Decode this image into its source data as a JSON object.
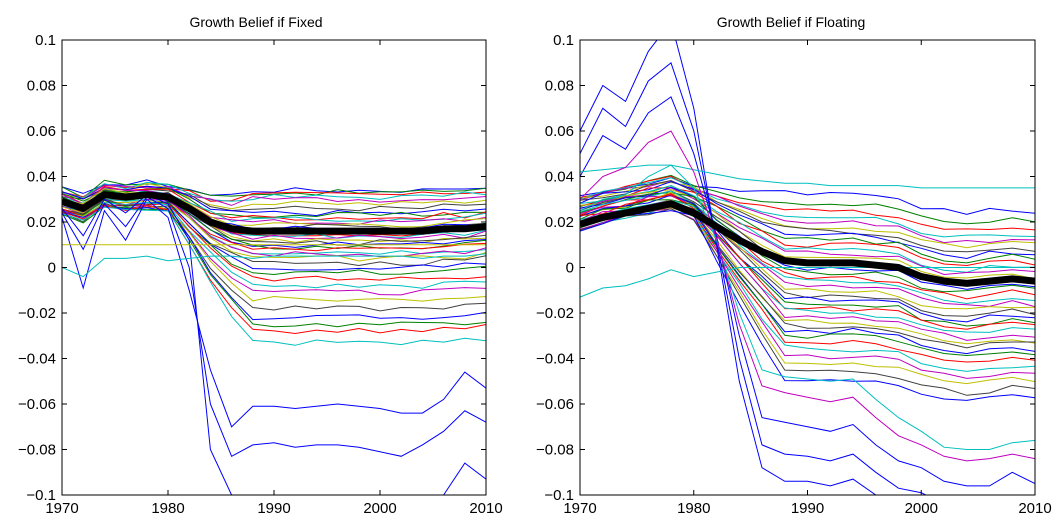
{
  "figure": {
    "background": "#ffffff",
    "line_colors": [
      "#0000ff",
      "#008000",
      "#ff0000",
      "#00bfbf",
      "#bf00bf",
      "#bfbf00",
      "#404040"
    ],
    "mean_color": "#000000"
  },
  "chart_data": [
    {
      "type": "line",
      "title": "Growth Belief if Fixed",
      "xlabel": "",
      "ylabel": "",
      "xlim": [
        1970,
        2010
      ],
      "ylim": [
        -0.1,
        0.1
      ],
      "xticks": [
        1970,
        1980,
        1990,
        2000,
        2010
      ],
      "yticks": [
        -0.1,
        -0.08,
        -0.06,
        -0.04,
        -0.02,
        0,
        0.02,
        0.04,
        0.06,
        0.08,
        0.1
      ],
      "ytick_labels": [
        "−0.1",
        "−0.08",
        "−0.06",
        "−0.04",
        "−0.02",
        "0",
        "0.02",
        "0.04",
        "0.06",
        "0.08",
        "0.1"
      ],
      "grid": false,
      "legend": "none",
      "x": [
        1970,
        1972,
        1974,
        1976,
        1978,
        1980,
        1982,
        1984,
        1986,
        1988,
        1990,
        1992,
        1994,
        1996,
        1998,
        2000,
        2002,
        2004,
        2006,
        2008,
        2010
      ],
      "mean_series": [
        0.029,
        0.026,
        0.032,
        0.031,
        0.032,
        0.031,
        0.026,
        0.02,
        0.017,
        0.016,
        0.016,
        0.016,
        0.016,
        0.016,
        0.016,
        0.016,
        0.016,
        0.016,
        0.017,
        0.017,
        0.018
      ],
      "spread_series": {
        "pre1980": [
          0.039,
          0.037,
          0.036,
          0.035,
          0.034,
          0.033,
          0.032,
          0.031,
          0.03,
          0.029,
          0.028,
          0.027,
          0.026,
          0.025,
          0.024,
          0.023,
          0.022,
          0.021,
          0.02,
          0.019,
          0.018
        ],
        "post1990": [
          0.036,
          0.035,
          0.034,
          0.033,
          0.032,
          0.03,
          0.028,
          0.026,
          0.025,
          0.024,
          0.023,
          0.022,
          0.021,
          0.02,
          0.019,
          0.018,
          0.017,
          0.016,
          0.015,
          0.014,
          0.013,
          0.012,
          0.011,
          0.01,
          0.009,
          0.008,
          0.006,
          0.004,
          0.002,
          0.0,
          -0.003,
          -0.006,
          -0.009,
          -0.012,
          -0.016,
          -0.02,
          -0.023,
          -0.026,
          -0.031
        ]
      },
      "outlier_series": [
        {
          "color": "#0000ff",
          "values": [
            0.022,
            -0.009,
            0.025,
            0.012,
            0.03,
            0.022,
            -0.01,
            -0.045,
            -0.07,
            -0.061,
            -0.061,
            -0.062,
            -0.061,
            -0.06,
            -0.061,
            -0.062,
            -0.064,
            -0.064,
            -0.058,
            -0.046,
            -0.053
          ]
        },
        {
          "color": "#0000ff",
          "values": [
            0.024,
            0.008,
            0.028,
            0.018,
            0.031,
            0.026,
            0.0,
            -0.06,
            -0.083,
            -0.078,
            -0.077,
            -0.079,
            -0.078,
            -0.078,
            -0.079,
            -0.081,
            -0.083,
            -0.078,
            -0.072,
            -0.063,
            -0.068
          ]
        },
        {
          "color": "#0000ff",
          "values": [
            0.026,
            0.014,
            0.03,
            0.024,
            0.032,
            0.028,
            0.012,
            -0.08,
            -0.1,
            -0.11,
            -0.112,
            -0.112,
            -0.112,
            -0.112,
            -0.112,
            -0.112,
            -0.112,
            -0.112,
            -0.1,
            -0.086,
            -0.093
          ]
        },
        {
          "color": "#00bfbf",
          "values": [
            0.0,
            -0.004,
            0.004,
            0.004,
            0.005,
            0.003,
            0.004,
            0.005,
            0.005,
            0.004,
            0.005,
            0.005,
            0.005,
            0.005,
            0.005,
            0.005,
            0.005,
            0.004,
            0.005,
            0.005,
            0.006
          ]
        },
        {
          "color": "#bfbf00",
          "values": [
            0.01,
            0.01,
            0.01,
            0.01,
            0.01,
            0.01,
            0.01,
            0.01,
            0.01,
            0.01,
            0.01,
            0.01,
            0.01,
            0.01,
            0.01,
            0.01,
            0.01,
            0.01,
            0.01,
            0.01,
            0.01
          ]
        }
      ]
    },
    {
      "type": "line",
      "title": "Growth Belief if Floating",
      "xlabel": "",
      "ylabel": "",
      "xlim": [
        1970,
        2010
      ],
      "ylim": [
        -0.1,
        0.1
      ],
      "xticks": [
        1970,
        1980,
        1990,
        2000,
        2010
      ],
      "yticks": [
        -0.1,
        -0.08,
        -0.06,
        -0.04,
        -0.02,
        0,
        0.02,
        0.04,
        0.06,
        0.08,
        0.1
      ],
      "ytick_labels": [
        "−0.1",
        "−0.08",
        "−0.06",
        "−0.04",
        "−0.02",
        "0",
        "0.02",
        "0.04",
        "0.06",
        "0.08",
        "0.1"
      ],
      "grid": false,
      "legend": "none",
      "x": [
        1970,
        1972,
        1974,
        1976,
        1978,
        1980,
        1982,
        1984,
        1986,
        1988,
        1990,
        1992,
        1994,
        1996,
        1998,
        2000,
        2002,
        2004,
        2006,
        2008,
        2010
      ],
      "mean_series": [
        0.019,
        0.022,
        0.024,
        0.026,
        0.028,
        0.024,
        0.018,
        0.012,
        0.007,
        0.003,
        0.002,
        0.002,
        0.002,
        0.001,
        0.0,
        -0.004,
        -0.006,
        -0.007,
        -0.006,
        -0.005,
        -0.006
      ],
      "spread_series": {
        "pre1980": [
          0.04,
          0.038,
          0.036,
          0.034,
          0.032,
          0.03,
          0.028,
          0.026,
          0.024,
          0.022,
          0.02,
          0.018,
          0.016,
          0.015
        ],
        "post1990": [
          0.025,
          0.02,
          0.017,
          0.014,
          0.012,
          0.01,
          0.008,
          0.006,
          0.004,
          0.002,
          0.0,
          -0.002,
          -0.004,
          -0.006,
          -0.008,
          -0.01,
          -0.012,
          -0.014,
          -0.016,
          -0.018,
          -0.02,
          -0.022,
          -0.024,
          -0.026,
          -0.028,
          -0.03,
          -0.032,
          -0.034,
          -0.036,
          -0.038,
          -0.041,
          -0.044,
          -0.047,
          -0.05,
          -0.054,
          -0.058
        ]
      },
      "outlier_series": [
        {
          "color": "#0000ff",
          "values": [
            0.06,
            0.08,
            0.073,
            0.095,
            0.108,
            0.07,
            0.01,
            -0.05,
            -0.088,
            -0.094,
            -0.094,
            -0.096,
            -0.093,
            -0.1,
            -0.106,
            -0.106,
            -0.11,
            -0.11,
            -0.11,
            -0.11,
            -0.11
          ]
        },
        {
          "color": "#0000ff",
          "values": [
            0.05,
            0.07,
            0.062,
            0.082,
            0.09,
            0.06,
            0.012,
            -0.04,
            -0.078,
            -0.082,
            -0.083,
            -0.085,
            -0.082,
            -0.09,
            -0.097,
            -0.099,
            -0.104,
            -0.105,
            -0.105,
            -0.105,
            -0.105
          ]
        },
        {
          "color": "#0000ff",
          "values": [
            0.04,
            0.058,
            0.052,
            0.068,
            0.075,
            0.05,
            0.014,
            -0.03,
            -0.066,
            -0.068,
            -0.07,
            -0.072,
            -0.069,
            -0.078,
            -0.085,
            -0.088,
            -0.094,
            -0.096,
            -0.096,
            -0.09,
            -0.095
          ]
        },
        {
          "color": "#00bfbf",
          "values": [
            -0.013,
            -0.009,
            -0.008,
            -0.005,
            -0.001,
            -0.004,
            -0.002,
            0.0,
            0.0,
            0.0,
            0.0,
            0.0,
            0.0,
            0.0,
            0.0,
            0.0,
            0.0,
            0.0,
            0.0,
            0.0,
            0.0
          ]
        },
        {
          "color": "#00bfbf",
          "values": [
            0.042,
            0.043,
            0.044,
            0.045,
            0.045,
            0.043,
            0.041,
            0.039,
            0.038,
            0.037,
            0.037,
            0.036,
            0.036,
            0.036,
            0.036,
            0.035,
            0.035,
            0.035,
            0.035,
            0.035,
            0.035
          ]
        },
        {
          "color": "#00bfbf",
          "values": [
            0.025,
            0.03,
            0.032,
            0.04,
            0.045,
            0.035,
            0.012,
            -0.02,
            -0.045,
            -0.048,
            -0.049,
            -0.05,
            -0.049,
            -0.058,
            -0.066,
            -0.072,
            -0.079,
            -0.08,
            -0.08,
            -0.077,
            -0.076
          ]
        },
        {
          "color": "#bf00bf",
          "values": [
            0.03,
            0.04,
            0.044,
            0.055,
            0.06,
            0.042,
            0.013,
            -0.025,
            -0.052,
            -0.055,
            -0.057,
            -0.059,
            -0.057,
            -0.066,
            -0.074,
            -0.078,
            -0.083,
            -0.085,
            -0.084,
            -0.082,
            -0.084
          ]
        }
      ]
    }
  ]
}
